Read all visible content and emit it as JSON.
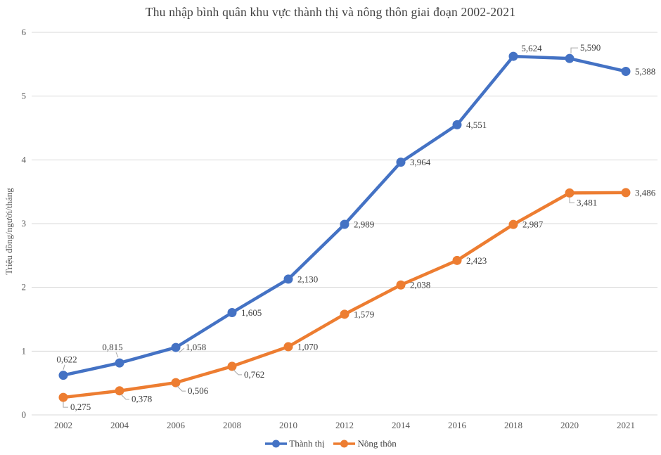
{
  "chart_data": {
    "type": "line",
    "title": "Thu nhập bình quân khu vực thành thị và nông thôn giai đoạn 2002-2021",
    "ylabel": "Triệu đồng/người/tháng",
    "categories": [
      "2002",
      "2004",
      "2006",
      "2008",
      "2010",
      "2012",
      "2014",
      "2016",
      "2018",
      "2020",
      "2021"
    ],
    "ylim": [
      0,
      6
    ],
    "yticks": [
      0,
      1,
      2,
      3,
      4,
      5,
      6
    ],
    "grid": true,
    "legend_position": "bottom",
    "colors": {
      "grid": "#D9D9D9",
      "tick_text": "#595959",
      "data_label_text": "#404040",
      "leader_line": "#A6A6A6",
      "title_text": "#404040"
    },
    "series": [
      {
        "name": "Thành thị",
        "color": "#4472C4",
        "values": [
          0.622,
          0.815,
          1.058,
          1.605,
          2.13,
          2.989,
          3.964,
          4.551,
          5.624,
          5.59,
          5.388
        ],
        "labels": [
          "0,622",
          "0,815",
          "1,058",
          "1,605",
          "2,130",
          "2,989",
          "3,964",
          "4,551",
          "5,624",
          "5,590",
          "5,388"
        ],
        "label_placements": [
          "above",
          "above-left",
          "right-leader",
          "right",
          "right",
          "right",
          "right",
          "right",
          "above-right",
          "elbow-up",
          "right"
        ]
      },
      {
        "name": "Nông thôn",
        "color": "#ED7D31",
        "values": [
          0.275,
          0.378,
          0.506,
          0.762,
          1.07,
          1.579,
          2.038,
          2.423,
          2.987,
          3.481,
          3.486
        ],
        "labels": [
          "0,275",
          "0,378",
          "0,506",
          "0,762",
          "1,070",
          "1,579",
          "2,038",
          "2,423",
          "2,987",
          "3,481",
          "3,486"
        ],
        "label_placements": [
          "elbow-down",
          "elbow-down-right",
          "elbow-down-right",
          "elbow-down-right",
          "right",
          "right",
          "right",
          "right",
          "right",
          "elbow-down",
          "right"
        ]
      }
    ]
  }
}
